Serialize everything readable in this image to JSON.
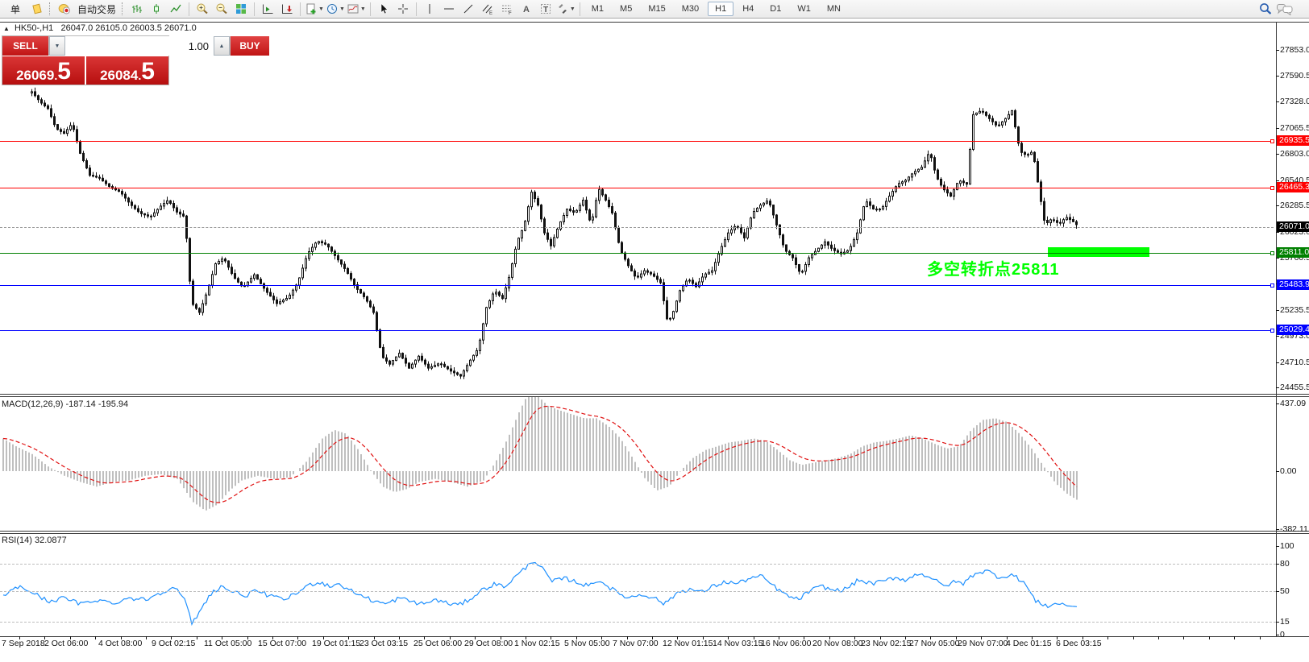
{
  "toolbar": {
    "new_order_label": "单",
    "autotrade_label": "自动交易",
    "timeframes": [
      "M1",
      "M5",
      "M15",
      "M30",
      "H1",
      "H4",
      "D1",
      "W1",
      "MN"
    ],
    "active_timeframe": "H1"
  },
  "chart": {
    "symbol_header": "HK50-,H1",
    "ohlc": "26047.0 26105.0 26003.5 26071.0",
    "one_click": {
      "sell_label": "SELL",
      "buy_label": "BUY",
      "volume": "1.00",
      "sell_price": "26069",
      "sell_dot": ".",
      "sell_frac": "5",
      "buy_price": "26084",
      "buy_dot": ".",
      "buy_frac": "5"
    },
    "annotation_text": "多空转折点25811",
    "annotation_color": "#00ff00",
    "highlight_color": "#00ff00",
    "levels": [
      {
        "price": 26935.5,
        "label": "26935.5",
        "color": "#ff0000",
        "current": false
      },
      {
        "price": 26465.3,
        "label": "26465.3",
        "color": "#ff0000",
        "current": false
      },
      {
        "price": 26071.0,
        "label": "26071.0",
        "color": "#000000",
        "current": true
      },
      {
        "price": 25811.0,
        "label": "25811.0",
        "color": "#008000",
        "current": false
      },
      {
        "price": 25483.9,
        "label": "25483.9",
        "color": "#0000ff",
        "current": false
      },
      {
        "price": 25029.4,
        "label": "25029.4",
        "color": "#0000ff",
        "current": false
      }
    ]
  },
  "macd": {
    "label": "MACD(12,26,9) -187.14 -195.94"
  },
  "rsi": {
    "label": "RSI(14) 32.0877"
  },
  "chart_data": {
    "type": "candlestick",
    "symbol": "HK50-",
    "timeframe": "H1",
    "main": {
      "price_ticks": [
        27853.0,
        27590.5,
        27328.0,
        27065.5,
        26803.0,
        26540.5,
        26285.5,
        26023.0,
        25760.5,
        25498.0,
        25235.5,
        24973.0,
        24710.5,
        24455.5
      ],
      "close_path": [
        [
          38,
          27430
        ],
        [
          48,
          27330
        ],
        [
          58,
          27260
        ],
        [
          68,
          27060
        ],
        [
          78,
          27010
        ],
        [
          88,
          27110
        ],
        [
          98,
          26810
        ],
        [
          110,
          26590
        ],
        [
          122,
          26560
        ],
        [
          135,
          26470
        ],
        [
          148,
          26420
        ],
        [
          160,
          26300
        ],
        [
          172,
          26210
        ],
        [
          185,
          26170
        ],
        [
          198,
          26280
        ],
        [
          207,
          26340
        ],
        [
          218,
          26220
        ],
        [
          228,
          26170
        ],
        [
          236,
          25310
        ],
        [
          246,
          25210
        ],
        [
          256,
          25430
        ],
        [
          266,
          25700
        ],
        [
          276,
          25760
        ],
        [
          288,
          25570
        ],
        [
          300,
          25460
        ],
        [
          314,
          25590
        ],
        [
          328,
          25430
        ],
        [
          342,
          25300
        ],
        [
          356,
          25360
        ],
        [
          368,
          25510
        ],
        [
          380,
          25800
        ],
        [
          392,
          25930
        ],
        [
          404,
          25890
        ],
        [
          416,
          25760
        ],
        [
          428,
          25630
        ],
        [
          440,
          25460
        ],
        [
          452,
          25350
        ],
        [
          462,
          25210
        ],
        [
          472,
          24770
        ],
        [
          482,
          24690
        ],
        [
          494,
          24800
        ],
        [
          506,
          24650
        ],
        [
          518,
          24770
        ],
        [
          530,
          24650
        ],
        [
          544,
          24700
        ],
        [
          558,
          24620
        ],
        [
          570,
          24570
        ],
        [
          582,
          24730
        ],
        [
          592,
          24850
        ],
        [
          602,
          25260
        ],
        [
          612,
          25430
        ],
        [
          622,
          25350
        ],
        [
          631,
          25590
        ],
        [
          640,
          25920
        ],
        [
          649,
          26090
        ],
        [
          658,
          26420
        ],
        [
          666,
          26290
        ],
        [
          674,
          26010
        ],
        [
          682,
          25880
        ],
        [
          692,
          26090
        ],
        [
          702,
          26250
        ],
        [
          712,
          26210
        ],
        [
          722,
          26340
        ],
        [
          732,
          26090
        ],
        [
          741,
          26460
        ],
        [
          750,
          26340
        ],
        [
          758,
          26210
        ],
        [
          768,
          25840
        ],
        [
          778,
          25680
        ],
        [
          788,
          25550
        ],
        [
          798,
          25630
        ],
        [
          808,
          25590
        ],
        [
          818,
          25510
        ],
        [
          827,
          25100
        ],
        [
          834,
          25220
        ],
        [
          842,
          25430
        ],
        [
          852,
          25550
        ],
        [
          862,
          25470
        ],
        [
          872,
          25590
        ],
        [
          882,
          25630
        ],
        [
          892,
          25840
        ],
        [
          902,
          26010
        ],
        [
          912,
          26090
        ],
        [
          922,
          25960
        ],
        [
          932,
          26210
        ],
        [
          942,
          26290
        ],
        [
          952,
          26340
        ],
        [
          962,
          26090
        ],
        [
          972,
          25840
        ],
        [
          982,
          25760
        ],
        [
          992,
          25590
        ],
        [
          1002,
          25760
        ],
        [
          1012,
          25840
        ],
        [
          1022,
          25920
        ],
        [
          1032,
          25840
        ],
        [
          1042,
          25800
        ],
        [
          1052,
          25840
        ],
        [
          1062,
          26010
        ],
        [
          1072,
          26340
        ],
        [
          1082,
          26250
        ],
        [
          1092,
          26250
        ],
        [
          1102,
          26380
        ],
        [
          1112,
          26500
        ],
        [
          1122,
          26540
        ],
        [
          1132,
          26620
        ],
        [
          1142,
          26670
        ],
        [
          1152,
          26830
        ],
        [
          1160,
          26580
        ],
        [
          1168,
          26460
        ],
        [
          1178,
          26380
        ],
        [
          1188,
          26540
        ],
        [
          1198,
          26500
        ],
        [
          1206,
          27200
        ],
        [
          1216,
          27240
        ],
        [
          1226,
          27160
        ],
        [
          1236,
          27080
        ],
        [
          1246,
          27160
        ],
        [
          1254,
          27240
        ],
        [
          1264,
          26830
        ],
        [
          1272,
          26790
        ],
        [
          1280,
          26830
        ],
        [
          1288,
          26420
        ],
        [
          1295,
          26090
        ],
        [
          1303,
          26150
        ],
        [
          1313,
          26100
        ],
        [
          1321,
          26170
        ],
        [
          1329,
          26130
        ],
        [
          1337,
          26071
        ]
      ]
    },
    "macd": {
      "params": "12,26,9",
      "value": -187.14,
      "signal": -195.94,
      "ticks": [
        "437.09",
        "0.00",
        "-382.11"
      ],
      "histogram": [
        [
          4,
          210
        ],
        [
          20,
          160
        ],
        [
          40,
          110
        ],
        [
          60,
          30
        ],
        [
          80,
          -30
        ],
        [
          100,
          -70
        ],
        [
          120,
          -100
        ],
        [
          140,
          -70
        ],
        [
          160,
          -60
        ],
        [
          180,
          -30
        ],
        [
          200,
          -20
        ],
        [
          220,
          -50
        ],
        [
          240,
          -200
        ],
        [
          255,
          -255
        ],
        [
          270,
          -215
        ],
        [
          285,
          -125
        ],
        [
          300,
          -60
        ],
        [
          320,
          -30
        ],
        [
          340,
          -50
        ],
        [
          360,
          -40
        ],
        [
          380,
          60
        ],
        [
          400,
          210
        ],
        [
          415,
          265
        ],
        [
          430,
          240
        ],
        [
          445,
          135
        ],
        [
          460,
          5
        ],
        [
          475,
          -100
        ],
        [
          490,
          -135
        ],
        [
          505,
          -115
        ],
        [
          520,
          -70
        ],
        [
          540,
          -50
        ],
        [
          560,
          -70
        ],
        [
          580,
          -100
        ],
        [
          600,
          -60
        ],
        [
          615,
          60
        ],
        [
          630,
          210
        ],
        [
          645,
          390
        ],
        [
          655,
          495
        ],
        [
          662,
          520
        ],
        [
          670,
          470
        ],
        [
          680,
          420
        ],
        [
          695,
          390
        ],
        [
          710,
          365
        ],
        [
          725,
          340
        ],
        [
          740,
          340
        ],
        [
          755,
          290
        ],
        [
          770,
          210
        ],
        [
          785,
          85
        ],
        [
          800,
          -45
        ],
        [
          815,
          -125
        ],
        [
          830,
          -100
        ],
        [
          845,
          5
        ],
        [
          860,
          85
        ],
        [
          875,
          135
        ],
        [
          890,
          160
        ],
        [
          905,
          185
        ],
        [
          920,
          195
        ],
        [
          935,
          210
        ],
        [
          950,
          195
        ],
        [
          965,
          135
        ],
        [
          980,
          70
        ],
        [
          995,
          40
        ],
        [
          1010,
          55
        ],
        [
          1025,
          70
        ],
        [
          1040,
          85
        ],
        [
          1055,
          110
        ],
        [
          1070,
          160
        ],
        [
          1085,
          185
        ],
        [
          1100,
          195
        ],
        [
          1115,
          210
        ],
        [
          1130,
          230
        ],
        [
          1145,
          210
        ],
        [
          1160,
          175
        ],
        [
          1175,
          145
        ],
        [
          1190,
          160
        ],
        [
          1205,
          265
        ],
        [
          1220,
          330
        ],
        [
          1235,
          340
        ],
        [
          1250,
          315
        ],
        [
          1265,
          240
        ],
        [
          1280,
          145
        ],
        [
          1295,
          30
        ],
        [
          1310,
          -80
        ],
        [
          1325,
          -150
        ],
        [
          1337,
          -187
        ]
      ]
    },
    "rsi": {
      "period": 14,
      "value": 32.0877,
      "ticks": [
        "100",
        "80",
        "50",
        "15",
        "0"
      ],
      "dashed_levels": [
        80,
        50,
        15
      ],
      "path": [
        [
          4,
          45
        ],
        [
          25,
          55
        ],
        [
          40,
          48
        ],
        [
          60,
          38
        ],
        [
          80,
          42
        ],
        [
          100,
          35
        ],
        [
          120,
          40
        ],
        [
          140,
          36
        ],
        [
          160,
          42
        ],
        [
          180,
          40
        ],
        [
          200,
          48
        ],
        [
          215,
          55
        ],
        [
          228,
          42
        ],
        [
          238,
          14
        ],
        [
          248,
          26
        ],
        [
          260,
          46
        ],
        [
          275,
          55
        ],
        [
          290,
          48
        ],
        [
          305,
          45
        ],
        [
          320,
          50
        ],
        [
          335,
          44
        ],
        [
          350,
          40
        ],
        [
          365,
          45
        ],
        [
          380,
          55
        ],
        [
          395,
          60
        ],
        [
          410,
          55
        ],
        [
          420,
          58
        ],
        [
          435,
          50
        ],
        [
          450,
          44
        ],
        [
          465,
          38
        ],
        [
          480,
          35
        ],
        [
          495,
          42
        ],
        [
          510,
          38
        ],
        [
          525,
          35
        ],
        [
          540,
          40
        ],
        [
          555,
          36
        ],
        [
          570,
          34
        ],
        [
          585,
          42
        ],
        [
          600,
          52
        ],
        [
          615,
          58
        ],
        [
          625,
          54
        ],
        [
          635,
          62
        ],
        [
          645,
          70
        ],
        [
          655,
          78
        ],
        [
          660,
          84
        ],
        [
          668,
          80
        ],
        [
          675,
          72
        ],
        [
          685,
          60
        ],
        [
          700,
          64
        ],
        [
          715,
          60
        ],
        [
          730,
          55
        ],
        [
          740,
          62
        ],
        [
          750,
          58
        ],
        [
          765,
          48
        ],
        [
          780,
          42
        ],
        [
          795,
          46
        ],
        [
          810,
          43
        ],
        [
          825,
          35
        ],
        [
          840,
          48
        ],
        [
          855,
          52
        ],
        [
          870,
          48
        ],
        [
          885,
          55
        ],
        [
          900,
          60
        ],
        [
          915,
          58
        ],
        [
          930,
          64
        ],
        [
          945,
          66
        ],
        [
          960,
          55
        ],
        [
          975,
          45
        ],
        [
          990,
          40
        ],
        [
          1005,
          50
        ],
        [
          1020,
          55
        ],
        [
          1035,
          50
        ],
        [
          1050,
          52
        ],
        [
          1065,
          62
        ],
        [
          1080,
          58
        ],
        [
          1095,
          60
        ],
        [
          1110,
          65
        ],
        [
          1125,
          62
        ],
        [
          1140,
          70
        ],
        [
          1155,
          65
        ],
        [
          1170,
          55
        ],
        [
          1185,
          60
        ],
        [
          1195,
          58
        ],
        [
          1210,
          70
        ],
        [
          1225,
          72
        ],
        [
          1240,
          65
        ],
        [
          1255,
          68
        ],
        [
          1270,
          60
        ],
        [
          1285,
          38
        ],
        [
          1300,
          33
        ],
        [
          1315,
          36
        ],
        [
          1325,
          33
        ],
        [
          1337,
          32.09
        ]
      ]
    },
    "time_labels": [
      [
        "7 Sep 2018",
        2
      ],
      [
        "2 Oct 06:00",
        55
      ],
      [
        "4 Oct 08:00",
        122
      ],
      [
        "9 Oct 02:15",
        188
      ],
      [
        "11 Oct 05:00",
        253
      ],
      [
        "15 Oct 07:00",
        320
      ],
      [
        "19 Oct 01:15",
        387
      ],
      [
        "23 Oct 03:15",
        446
      ],
      [
        "25 Oct 06:00",
        513
      ],
      [
        "29 Oct 08:00",
        576
      ],
      [
        "1 Nov 02:15",
        638
      ],
      [
        "5 Nov 05:00",
        700
      ],
      [
        "7 Nov 07:00",
        760
      ],
      [
        "12 Nov 01:15",
        822
      ],
      [
        "14 Nov 03:15",
        884
      ],
      [
        "16 Nov 06:00",
        944
      ],
      [
        "20 Nov 08:00",
        1008
      ],
      [
        "23 Nov 02:15",
        1068
      ],
      [
        "27 Nov 05:00",
        1128
      ],
      [
        "29 Nov 07:00",
        1188
      ],
      [
        "4 Dec 01:15",
        1248
      ],
      [
        "6 Dec 03:15",
        1310
      ]
    ]
  }
}
